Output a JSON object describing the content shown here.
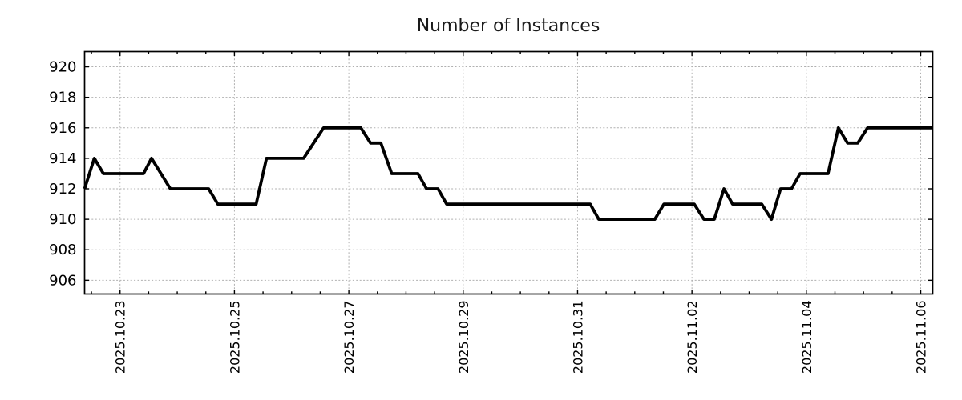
{
  "page": {
    "background": "#ffffff"
  },
  "chart_data": {
    "type": "line",
    "title": "Number of Instances",
    "xlabel": "",
    "ylabel": "",
    "x_unit": "days since 2025.10.23 00:00",
    "xlim_days": [
      -0.62,
      14.21
    ],
    "ylim": [
      905.1,
      921.0
    ],
    "grid": true,
    "legend_position": "none",
    "y_ticks": [
      906,
      908,
      910,
      912,
      914,
      916,
      918,
      920
    ],
    "x_ticks": [
      {
        "label": "2025.10.23",
        "day": 0
      },
      {
        "label": "2025.10.25",
        "day": 2
      },
      {
        "label": "2025.10.27",
        "day": 4
      },
      {
        "label": "2025.10.29",
        "day": 6
      },
      {
        "label": "2025.10.31",
        "day": 8
      },
      {
        "label": "2025.11.02",
        "day": 10
      },
      {
        "label": "2025.11.04",
        "day": 12
      },
      {
        "label": "2025.11.06",
        "day": 14
      }
    ],
    "x_minor_tick_step_days": 0.5,
    "styles": {
      "line_color": "#000000",
      "grid_color": "#b0b0b0",
      "axis_color": "#000000",
      "text_color": "#1a1a1a"
    },
    "series": [
      {
        "name": "Number of Instances",
        "color": "#000000",
        "points": [
          [
            -0.62,
            912
          ],
          [
            -0.45,
            914
          ],
          [
            -0.29,
            913
          ],
          [
            0.41,
            913
          ],
          [
            0.55,
            914
          ],
          [
            0.88,
            912
          ],
          [
            1.55,
            912
          ],
          [
            1.71,
            911
          ],
          [
            2.38,
            911
          ],
          [
            2.56,
            914
          ],
          [
            3.21,
            914
          ],
          [
            3.56,
            916
          ],
          [
            4.21,
            916
          ],
          [
            4.38,
            915
          ],
          [
            4.56,
            915
          ],
          [
            4.75,
            913
          ],
          [
            5.21,
            913
          ],
          [
            5.36,
            912
          ],
          [
            5.56,
            912
          ],
          [
            5.71,
            911
          ],
          [
            8.22,
            911
          ],
          [
            8.37,
            910
          ],
          [
            9.35,
            910
          ],
          [
            9.51,
            911
          ],
          [
            10.04,
            911
          ],
          [
            10.21,
            910
          ],
          [
            10.39,
            910
          ],
          [
            10.56,
            912
          ],
          [
            10.71,
            911
          ],
          [
            11.22,
            911
          ],
          [
            11.39,
            910
          ],
          [
            11.55,
            912
          ],
          [
            11.74,
            912
          ],
          [
            11.89,
            913
          ],
          [
            12.38,
            913
          ],
          [
            12.56,
            916
          ],
          [
            12.72,
            915
          ],
          [
            12.9,
            915
          ],
          [
            13.07,
            916
          ],
          [
            14.21,
            916
          ]
        ]
      }
    ]
  }
}
